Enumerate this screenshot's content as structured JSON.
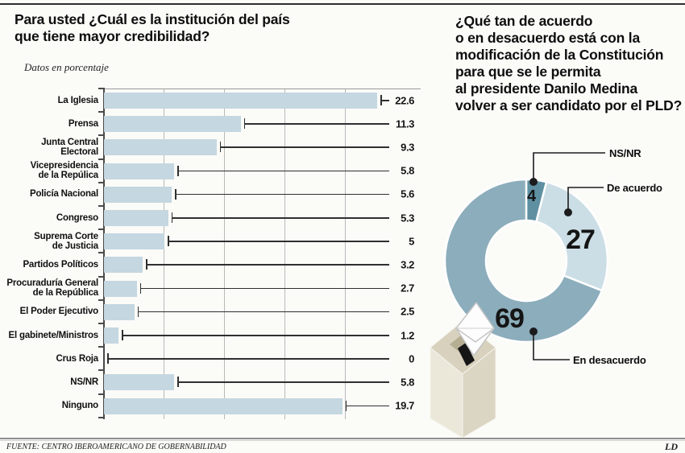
{
  "page": {
    "source": "FUENTE: CENTRO IBEROAMERICANO DE GOBERNABILIDAD",
    "credit": "LD"
  },
  "left_chart": {
    "title": "Para usted ¿Cuál es la institución del país\nque tiene mayor credibilidad?",
    "subtitle": "Datos en porcentaje"
  },
  "right_chart": {
    "title": "¿Qué tan de acuerdo\no en desacuerdo está con la\nmodificación de la Constitución\npara que se le permita\nal presidente Danilo Medina\nvolver a ser candidato por el PLD?"
  },
  "chart_data": [
    {
      "type": "bar",
      "orientation": "horizontal",
      "title": "Para usted ¿Cuál es la institución del país que tiene mayor credibilidad?",
      "subtitle": "Datos en porcentaje",
      "unit": "percent",
      "categories": [
        "La Iglesia",
        "Prensa",
        "Junta Central\nElectoral",
        "Vicepresidencia\nde la Repúlica",
        "Policía Nacional",
        "Congreso",
        "Suprema Corte\nde Justicia",
        "Partidos Políticos",
        "Procuraduría General\nde la República",
        "El Poder Ejecutivo",
        "El gabinete/Ministros",
        "Crus Roja",
        "NS/NR",
        "Ninguno"
      ],
      "values": [
        22.6,
        11.3,
        9.3,
        5.8,
        5.6,
        5.3,
        5,
        3.2,
        2.7,
        2.5,
        1.2,
        0,
        5.8,
        19.7
      ],
      "xlim": [
        0,
        25
      ],
      "gridline_values": [
        5,
        10,
        15,
        20
      ],
      "grid": true,
      "legend": false,
      "bar_color": "#c5d7e0"
    },
    {
      "type": "pie",
      "subtype": "donut",
      "title": "¿Qué tan de acuerdo o en desacuerdo está con la modificación de la Constitución para que se le permita al presidente Danilo Medina volver a ser candidato por el PLD?",
      "labels": [
        "NS/NR",
        "De acuerdo",
        "En desacuerdo"
      ],
      "values": [
        4,
        27,
        69
      ],
      "colors": [
        "#5e90a2",
        "#ccdee5",
        "#8cadbb"
      ],
      "start_angle_deg": 0,
      "direction": "clockwise",
      "legend": "callouts"
    }
  ]
}
